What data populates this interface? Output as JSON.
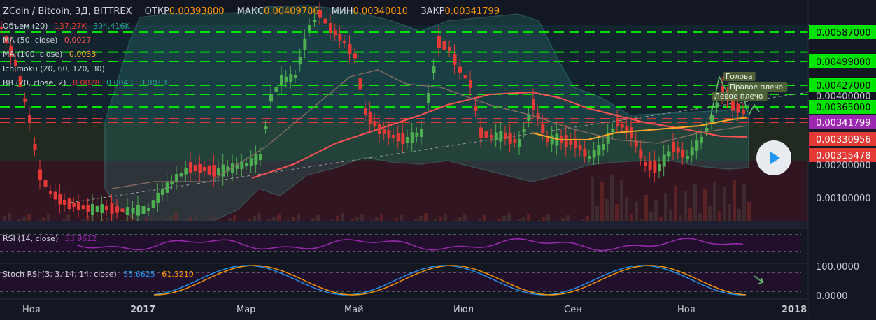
{
  "header": {
    "title": "ZCoin / Bitcoin, 3Д, BITTREX",
    "open_label": "ОТКР",
    "open": "0.00393800",
    "high_label": "МАКС",
    "high": "0.00409786",
    "low_label": "МИН",
    "low": "0.00340010",
    "close_label": "ЗАКР",
    "close": "0.00341799"
  },
  "indicators": {
    "volume": {
      "label": "Объем (20)",
      "v1": "137.27K",
      "v2": "304.416K"
    },
    "ma50": {
      "label": "MA (50, close)",
      "value": "0.0027"
    },
    "ma100": {
      "label": "MA (100, close)",
      "value": "0.0033"
    },
    "ichimoku": {
      "label": "Ichimoku (20, 60, 120, 30)"
    },
    "bb": {
      "label": "BB (20, close, 2)",
      "v1": "0.0028",
      "v2": "0.0043",
      "v3": "0.0013"
    },
    "rsi": {
      "label": "RSI (14, close)",
      "value": "53.9612"
    },
    "stoch": {
      "label": "Stoch RSI (3, 3, 14, 14, close)",
      "k": "55.6625",
      "d": "61.3210"
    }
  },
  "colors": {
    "background": "#131722",
    "up": "#4caf50",
    "down": "#e53935",
    "level": "#00e500",
    "ma50": "#ff5252",
    "ma100": "#ffa726",
    "bb": "#4db6ac",
    "rsi": "#9c27b0",
    "stoch_k": "#2196f3",
    "stoch_d": "#ff9800"
  },
  "play_icon": "play-icon",
  "chart_data": {
    "type": "candlestick",
    "price_axis_labels": [
      "0.00587000",
      "0.00499000",
      "0.00427000",
      "0.00400000",
      "0.00365000",
      "0.00341799",
      "0.00330956",
      "0.00315478",
      "0.00200000",
      "0.00100000"
    ],
    "time_axis_labels": [
      "Ноя",
      "2017",
      "Мар",
      "Май",
      "Июл",
      "Сен",
      "Ноя",
      "2018"
    ],
    "horizontal_levels": [
      0.00587,
      0.00527,
      0.00499,
      0.00427,
      0.004,
      0.00365,
      0.00341799
    ],
    "annotations": [
      "Голова",
      "Правое плечо",
      "Левое плечо"
    ],
    "rsi": {
      "levels": [
        70,
        30
      ]
    },
    "stoch_rsi": {
      "axis_labels": [
        "100.0000",
        "0.0000"
      ]
    }
  }
}
